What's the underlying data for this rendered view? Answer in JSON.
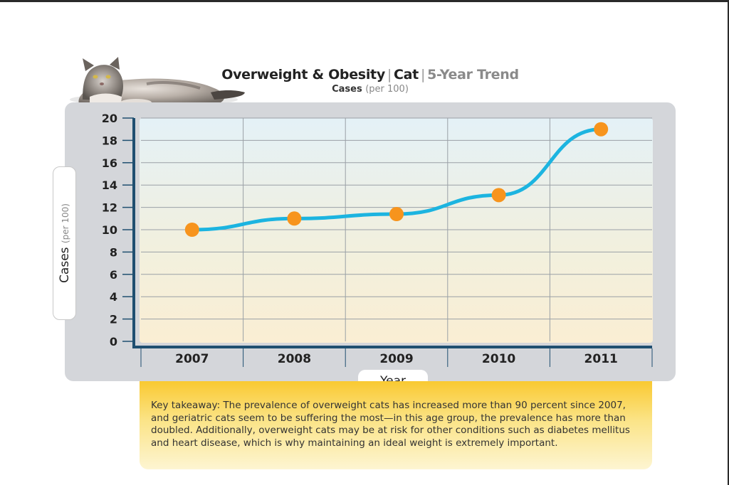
{
  "header": {
    "title_main": "Overweight & Obesity",
    "title_species": "Cat",
    "title_trend": "5-Year Trend",
    "subtitle": "Cases",
    "subtitle_unit": "(per 100)"
  },
  "chart_data": {
    "type": "line",
    "title": "Overweight & Obesity | Cat | 5-Year Trend",
    "subtitle": "Cases (per 100)",
    "xlabel": "Year",
    "ylabel": "Cases",
    "ylabel_unit": "(per 100)",
    "categories": [
      "2007",
      "2008",
      "2009",
      "2010",
      "2011"
    ],
    "series": [
      {
        "values": [
          10,
          11,
          11.4,
          13.1,
          19
        ]
      }
    ],
    "ylim": [
      0,
      20
    ],
    "yticks": [
      0,
      2,
      4,
      6,
      8,
      10,
      12,
      14,
      16,
      18,
      20
    ],
    "grid": true,
    "colors": {
      "line": "#1cb4e0",
      "marker": "#f7941d",
      "axis": "#1f4f70"
    }
  },
  "takeaway": {
    "text": "Key takeaway: The prevalence of overweight cats has increased more than 90 percent since 2007, and geriatric cats seem to be suffering the most—in this age group, the prevalence has more than doubled. Additionally, overweight cats may be at risk for other conditions such as diabetes mellitus and heart disease, which is why maintaining an ideal weight is extremely important."
  },
  "illustration": {
    "icon": "cat-photo"
  }
}
